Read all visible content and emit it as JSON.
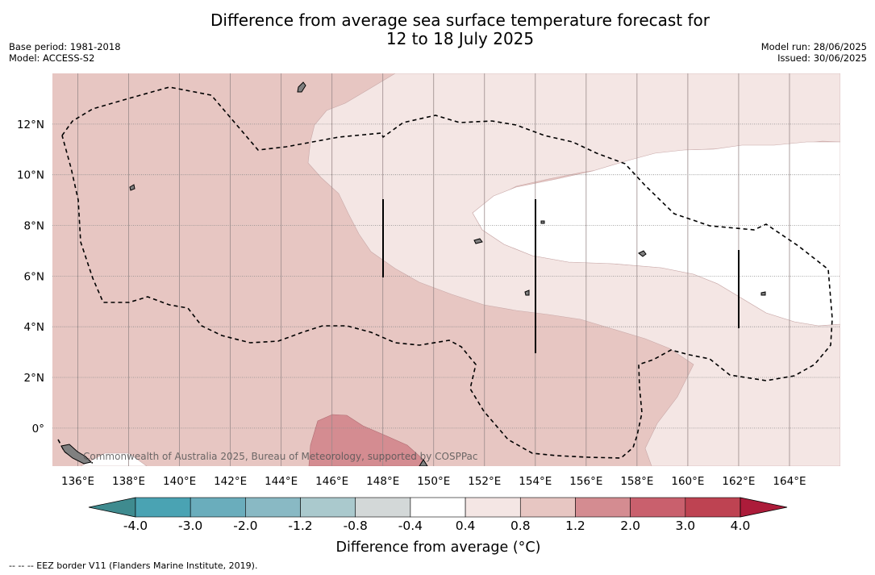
{
  "header": {
    "title_line1": "Difference from average sea surface temperature forecast for",
    "title_line2": "12 to 18 July 2025",
    "base_period": "Base period: 1981-2018",
    "model": "Model: ACCESS-S2",
    "model_run": "Model run: 28/06/2025",
    "issued": "Issued: 30/06/2025"
  },
  "map": {
    "region": {
      "lon_range": [
        135,
        166
      ],
      "lat_range": [
        -1.5,
        14
      ]
    },
    "lon_ticks": [
      "136°E",
      "138°E",
      "140°E",
      "142°E",
      "144°E",
      "146°E",
      "148°E",
      "150°E",
      "152°E",
      "154°E",
      "156°E",
      "158°E",
      "160°E",
      "162°E",
      "164°E"
    ],
    "lat_ticks": [
      "12°N",
      "10°N",
      "8°N",
      "6°N",
      "4°N",
      "2°N",
      "0°"
    ],
    "attribution": "Commonwealth of Australia 2025, Bureau of Meteorology, supported by COSPPac",
    "fill_colors": {
      "band_0.4_0.8": "#f4e6e4",
      "band_0.8_1.2": "#e7c6c2",
      "band_1.2_2.0": "#d48c91",
      "land": "#808080",
      "neutral": "#ffffff"
    },
    "eez_line": "dashed"
  },
  "colorbar": {
    "labels": [
      "-4.0",
      "-3.0",
      "-2.0",
      "-1.2",
      "-0.8",
      "-0.4",
      "0.4",
      "0.8",
      "1.2",
      "2.0",
      "3.0",
      "4.0"
    ],
    "colors": [
      "#4aa3b3",
      "#6aadbc",
      "#89b9c4",
      "#aac9cd",
      "#d3d8d8",
      "#ffffff",
      "#f4e6e4",
      "#e7c6c2",
      "#d48c91",
      "#c9606d",
      "#be4352"
    ],
    "extend_low_color": "#3f8b8f",
    "extend_high_color": "#ac1c3a",
    "title": "Difference from average (°C)"
  },
  "footer": "--  --  -- EEZ border V11 (Flanders Marine Institute, 2019)."
}
